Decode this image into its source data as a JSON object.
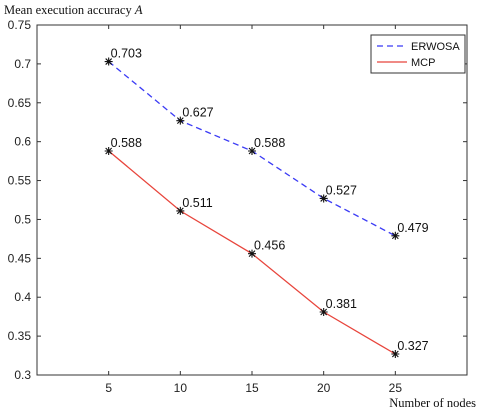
{
  "chart_data": {
    "type": "line",
    "xlabel": "Number of nodes",
    "ylabel": "Mean execution accuracy A",
    "ylabel_parts": {
      "text": "Mean execution accuracy ",
      "var": "A"
    },
    "x": [
      5,
      10,
      15,
      20,
      25
    ],
    "xlim": [
      0,
      30
    ],
    "ylim": [
      0.3,
      0.75
    ],
    "xticks": [
      5,
      10,
      15,
      20,
      25
    ],
    "yticks": [
      0.3,
      0.35,
      0.4,
      0.45,
      0.5,
      0.55,
      0.6,
      0.65,
      0.7,
      0.75
    ],
    "xtick_labels": [
      "5",
      "10",
      "15",
      "20",
      "25"
    ],
    "ytick_labels": [
      "0.3",
      "0.35",
      "0.4",
      "0.45",
      "0.5",
      "0.55",
      "0.6",
      "0.65",
      "0.7",
      "0.75"
    ],
    "grid": false,
    "legend_position": "top-right",
    "series": [
      {
        "name": "ERWOSA",
        "values": [
          0.703,
          0.627,
          0.588,
          0.527,
          0.479
        ],
        "labels": [
          "0.703",
          "0.627",
          "0.588",
          "0.527",
          "0.479"
        ],
        "color": "#3b3bf5",
        "dash": "dashed",
        "marker": "asterisk"
      },
      {
        "name": "MCP",
        "values": [
          0.588,
          0.511,
          0.456,
          0.381,
          0.327
        ],
        "labels": [
          "0.588",
          "0.511",
          "0.456",
          "0.381",
          "0.327"
        ],
        "color": "#e8453c",
        "dash": "solid",
        "marker": "asterisk"
      }
    ]
  }
}
